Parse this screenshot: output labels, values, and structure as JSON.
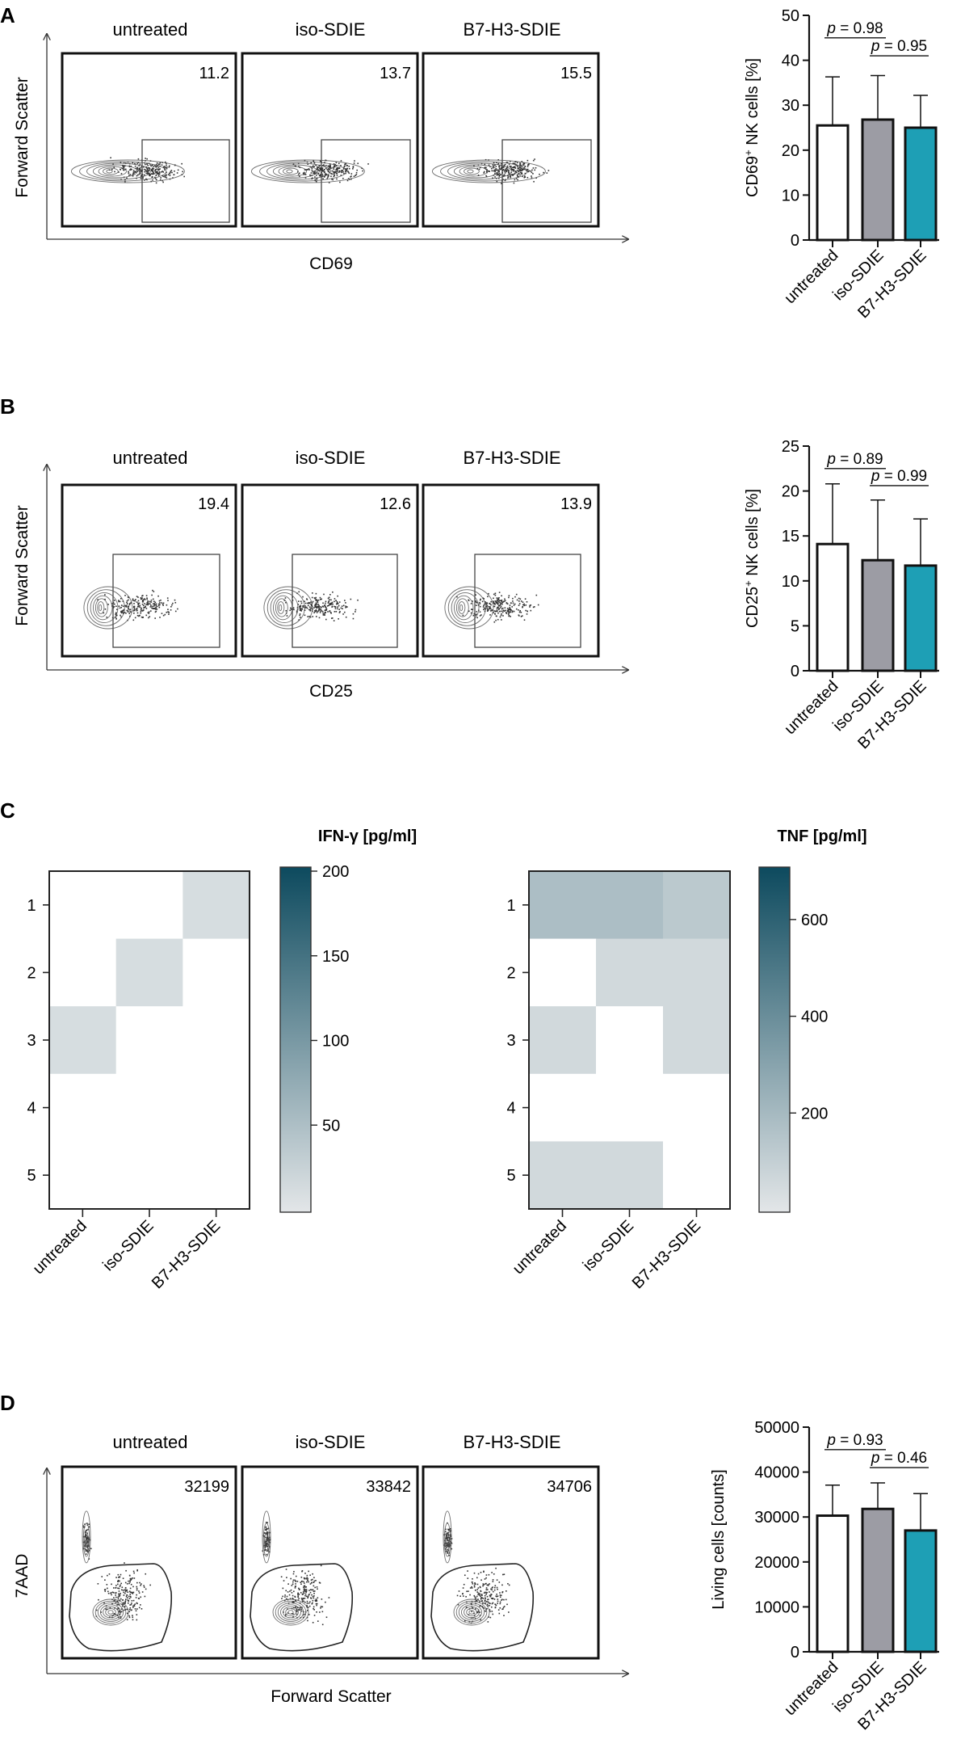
{
  "groups": [
    "untreated",
    "iso-SDIE",
    "B7-H3-SDIE"
  ],
  "colors": {
    "untreated": "#ffffff",
    "iso": "#9c9ca4",
    "b7h3": "#1e9fb5",
    "heat_max": "#0d4a5e",
    "heat_min": "#e3e6e8",
    "ink": "#111111",
    "dots": "#333333"
  },
  "panels": {
    "A": {
      "letter": "A",
      "x_axis_label": "CD69",
      "y_axis_label": "Forward Scatter",
      "gate_values": [
        "11.2",
        "13.7",
        "15.5"
      ],
      "gate": "rect"
    },
    "B": {
      "letter": "B",
      "x_axis_label": "CD25",
      "y_axis_label": "Forward Scatter",
      "gate_values": [
        "19.4",
        "12.6",
        "13.9"
      ],
      "gate": "rect"
    },
    "C": {
      "letter": "C"
    },
    "D": {
      "letter": "D",
      "x_axis_label": "Forward Scatter",
      "y_axis_label": "7AAD",
      "gate_values": [
        "32199",
        "33842",
        "34706"
      ],
      "gate": "polygon"
    }
  },
  "chart_data": [
    {
      "id": "A-bar",
      "type": "bar",
      "ylabel_main": "CD69",
      "ylabel_sup": "+",
      "ylabel_rest": " NK cells [%]",
      "categories": [
        "untreated",
        "iso-SDIE",
        "B7-H3-SDIE"
      ],
      "values": [
        25.5,
        26.8,
        25.0
      ],
      "errors": [
        10.8,
        9.8,
        7.2
      ],
      "ylim": [
        0,
        50
      ],
      "yticks": [
        0,
        10,
        20,
        30,
        40,
        50
      ],
      "comparisons": [
        {
          "a": 0,
          "b": 1,
          "label_p": "p",
          "label_val": " = 0.98",
          "ref": 45
        },
        {
          "a": 1,
          "b": 2,
          "label_p": "p",
          "label_val": " = 0.95",
          "ref": 41
        }
      ]
    },
    {
      "id": "B-bar",
      "type": "bar",
      "ylabel_main": "CD25",
      "ylabel_sup": "+",
      "ylabel_rest": " NK cells [%]",
      "categories": [
        "untreated",
        "iso-SDIE",
        "B7-H3-SDIE"
      ],
      "values": [
        14.1,
        12.3,
        11.7
      ],
      "errors": [
        6.7,
        6.7,
        5.2
      ],
      "ylim": [
        0,
        25
      ],
      "yticks": [
        0,
        5,
        10,
        15,
        20,
        25
      ],
      "comparisons": [
        {
          "a": 0,
          "b": 1,
          "label_p": "p",
          "label_val": " = 0.89",
          "ref": 22.5
        },
        {
          "a": 1,
          "b": 2,
          "label_p": "p",
          "label_val": " = 0.99",
          "ref": 20.6
        }
      ]
    },
    {
      "id": "C-ifng",
      "type": "heatmap",
      "title": "IFN-γ [pg/ml]",
      "rows": [
        "1",
        "2",
        "3",
        "4",
        "5"
      ],
      "columns": [
        "untreated",
        "iso-SDIE",
        "B7-H3-SDIE"
      ],
      "values": [
        [
          0,
          0,
          12
        ],
        [
          0,
          12,
          0
        ],
        [
          12,
          0,
          0
        ],
        [
          0,
          0,
          0
        ],
        [
          0,
          0,
          0
        ]
      ],
      "scale": [
        0,
        200
      ],
      "ticks": [
        50,
        100,
        150,
        200
      ]
    },
    {
      "id": "C-tnf",
      "type": "heatmap",
      "title": "TNF [pg/ml]",
      "rows": [
        "1",
        "2",
        "3",
        "4",
        "5"
      ],
      "columns": [
        "untreated",
        "iso-SDIE",
        "B7-H3-SDIE"
      ],
      "values": [
        [
          180,
          180,
          130
        ],
        [
          0,
          60,
          60
        ],
        [
          60,
          0,
          60
        ],
        [
          0,
          0,
          0
        ],
        [
          60,
          60,
          0
        ]
      ],
      "scale": [
        0,
        700
      ],
      "ticks": [
        200,
        400,
        600
      ]
    },
    {
      "id": "D-bar",
      "type": "bar",
      "ylabel_main": "Living cells [counts]",
      "ylabel_sup": "",
      "ylabel_rest": "",
      "categories": [
        "untreated",
        "iso-SDIE",
        "B7-H3-SDIE"
      ],
      "values": [
        30300,
        31800,
        27000
      ],
      "errors": [
        6800,
        5800,
        8200
      ],
      "ylim": [
        0,
        50000
      ],
      "yticks": [
        0,
        10000,
        20000,
        30000,
        40000,
        50000
      ],
      "comparisons": [
        {
          "a": 0,
          "b": 1,
          "label_p": "p",
          "label_val": " = 0.93",
          "ref": 45000
        },
        {
          "a": 1,
          "b": 2,
          "label_p": "p",
          "label_val": " = 0.46",
          "ref": 41000
        }
      ]
    }
  ]
}
